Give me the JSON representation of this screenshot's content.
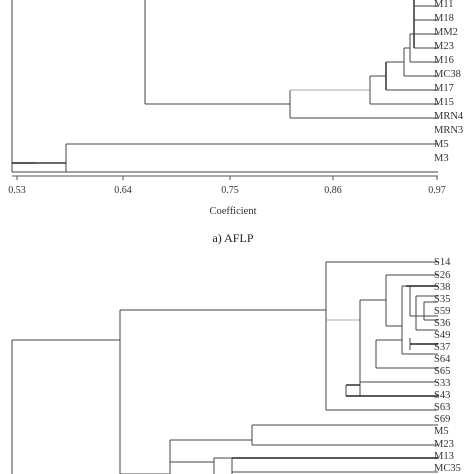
{
  "panel_a": {
    "leaves": [
      "M11",
      "M18",
      "MM2",
      "M23",
      "M16",
      "MC38",
      "M17",
      "M15",
      "MRN4",
      "MRN3",
      "M5",
      "M3"
    ],
    "axis": {
      "ticks": [
        "0.53",
        "0.64",
        "0.75",
        "0.86",
        "0.97"
      ],
      "title": "Coefficient"
    },
    "caption": "a) AFLP"
  },
  "panel_b": {
    "leaves": [
      "S14",
      "S26",
      "S38",
      "S35",
      "S59",
      "S36",
      "S49",
      "S37",
      "S64",
      "S65",
      "S33",
      "S43",
      "S63",
      "S69",
      "M5",
      "M23",
      "M13",
      "MC35"
    ]
  }
}
